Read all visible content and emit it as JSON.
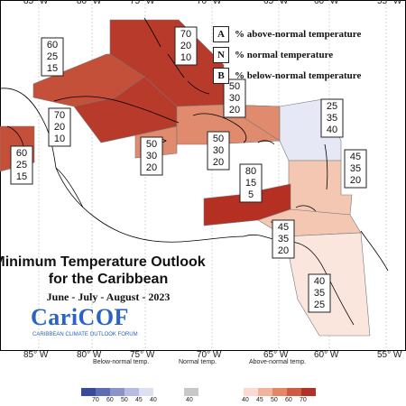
{
  "map": {
    "title_line1": "Minimum Temperature Outlook",
    "title_line2": "for the Caribbean",
    "subtitle": "June - July - August - 2023",
    "logo": {
      "name": "CariCOF",
      "tagline": "CARIBBEAN CLIMATE OUTLOOK FORUM"
    },
    "longitude_labels": [
      "85° W",
      "80° W",
      "75° W",
      "70° W",
      "65° W",
      "60° W",
      "55° W"
    ],
    "legend": [
      {
        "letter": "A",
        "text": "% above-normal temperature"
      },
      {
        "letter": "N",
        "text": "% normal temperature"
      },
      {
        "letter": "B",
        "text": "% below-normal temperature"
      }
    ],
    "regions": [
      {
        "id": "bahamas",
        "above": "70",
        "normal": "20",
        "below": "10",
        "color": "#b73a2b"
      },
      {
        "id": "cuba-west",
        "above": "60",
        "normal": "25",
        "below": "15",
        "color": "#c5503a"
      },
      {
        "id": "cuba-east",
        "above": "70",
        "normal": "20",
        "below": "10",
        "color": "#b73a2b"
      },
      {
        "id": "yucatan",
        "above": "60",
        "normal": "25",
        "below": "15",
        "color": "#c5503a"
      },
      {
        "id": "jamaica-area",
        "above": "50",
        "normal": "30",
        "below": "20",
        "color": "#e08a6e"
      },
      {
        "id": "hispaniola",
        "above": "50",
        "normal": "30",
        "below": "20",
        "color": "#e08a6e"
      },
      {
        "id": "turks-caicos",
        "above": "50",
        "normal": "30",
        "below": "20",
        "color": "#e08a6e"
      },
      {
        "id": "northern-leewards",
        "above": "25",
        "normal": "35",
        "below": "40",
        "color": "#e6e9f5"
      },
      {
        "id": "leewards-windwards",
        "above": "45",
        "normal": "35",
        "below": "20",
        "color": "#f4c7b3"
      },
      {
        "id": "abc-islands",
        "above": "80",
        "normal": "15",
        "below": "5",
        "color": "#b52f23"
      },
      {
        "id": "trinidad",
        "above": "45",
        "normal": "35",
        "below": "20",
        "color": "#f4c7b3"
      },
      {
        "id": "guianas",
        "above": "40",
        "normal": "35",
        "below": "25",
        "color": "#fbe6de"
      }
    ],
    "colorbar": {
      "below_title": "Below-normal temp.",
      "normal_title": "Normal temp.",
      "above_title": "Above-normal temp.",
      "below_ticks": [
        "70",
        "60",
        "50",
        "45",
        "40"
      ],
      "normal_ticks": [
        "40"
      ],
      "above_ticks": [
        "40",
        "45",
        "50",
        "60",
        "70"
      ],
      "below_colors": [
        "#3b4a98",
        "#5f6cb3",
        "#8a94c8",
        "#b7bde0",
        "#dde0f0"
      ],
      "normal_colors": [
        "#c8c8c8"
      ],
      "above_colors": [
        "#f8dcd2",
        "#f1b39d",
        "#e58669",
        "#cf5a45",
        "#b0322a"
      ]
    }
  }
}
